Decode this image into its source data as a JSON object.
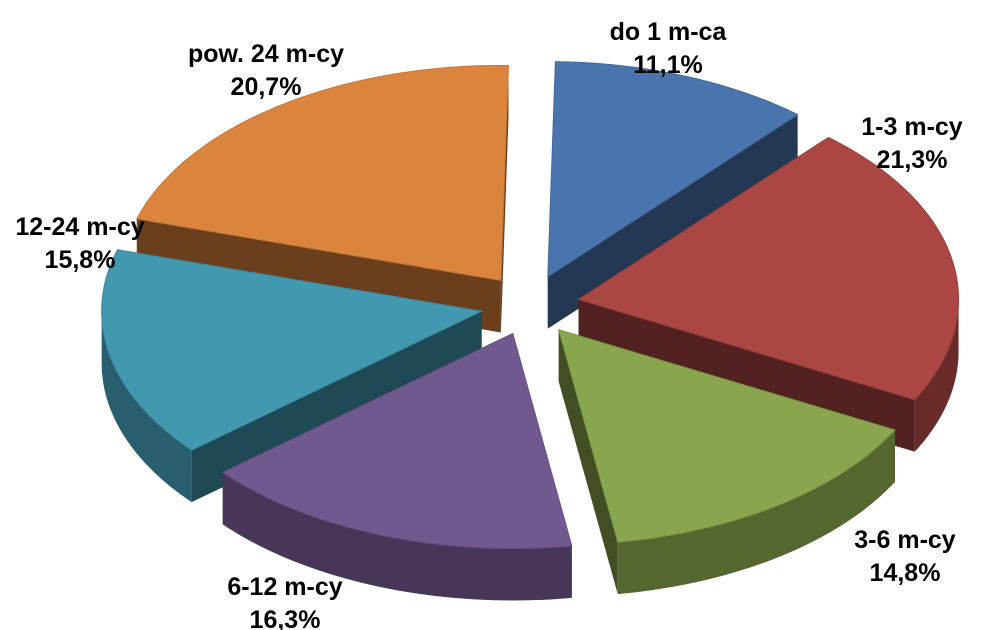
{
  "chart_data": {
    "type": "pie",
    "style": "3d-exploded",
    "categories": [
      "do 1 m-ca",
      "1-3 m-cy",
      "3-6 m-cy",
      "6-12 m-cy",
      "12-24 m-cy",
      "pow. 24 m-cy"
    ],
    "values": [
      11.1,
      21.3,
      14.8,
      16.3,
      15.8,
      20.7
    ],
    "value_labels": [
      "11,1%",
      "21,3%",
      "14,8%",
      "16,3%",
      "15,8%",
      "20,7%"
    ],
    "colors": [
      "#4A74AD",
      "#AA4644",
      "#89A54E",
      "#71588F",
      "#4198AF",
      "#DB843D"
    ],
    "title": "",
    "legend": "none"
  }
}
